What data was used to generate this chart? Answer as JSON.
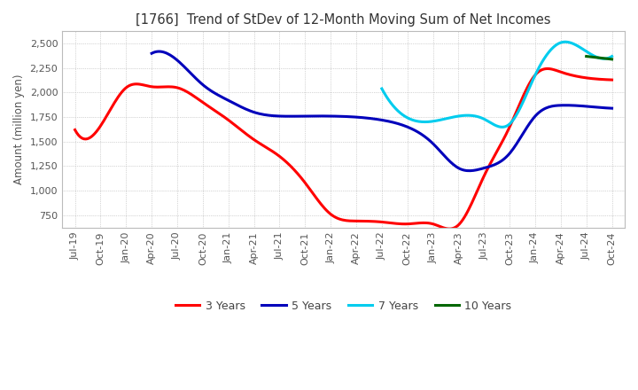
{
  "title": "[1766]  Trend of StDev of 12-Month Moving Sum of Net Incomes",
  "ylabel": "Amount (million yen)",
  "line_colors": {
    "3 Years": "#ff0000",
    "5 Years": "#0000bb",
    "7 Years": "#00ccee",
    "10 Years": "#006600"
  },
  "x_labels": [
    "Jul-19",
    "Oct-19",
    "Jan-20",
    "Apr-20",
    "Jul-20",
    "Oct-20",
    "Jan-21",
    "Apr-21",
    "Jul-21",
    "Oct-21",
    "Jan-22",
    "Apr-22",
    "Jul-22",
    "Oct-22",
    "Jan-23",
    "Apr-23",
    "Jul-23",
    "Oct-23",
    "Jan-24",
    "Apr-24",
    "Jul-24",
    "Oct-24"
  ],
  "ylim": [
    625,
    2625
  ],
  "yticks": [
    750,
    1000,
    1250,
    1500,
    1750,
    2000,
    2250,
    2500
  ],
  "series": {
    "3 Years": [
      1620,
      1660,
      2050,
      2060,
      2050,
      1900,
      1720,
      1520,
      1350,
      1080,
      760,
      690,
      680,
      660,
      660,
      650,
      1150,
      1650,
      2180,
      2210,
      2150,
      2130
    ],
    "5 Years": [
      null,
      null,
      null,
      2400,
      2330,
      2080,
      1920,
      1800,
      1760,
      1760,
      1760,
      1750,
      1720,
      1650,
      1480,
      1230,
      1230,
      1380,
      1760,
      1870,
      1860,
      1840
    ],
    "7 Years": [
      null,
      null,
      null,
      null,
      null,
      null,
      null,
      null,
      null,
      null,
      null,
      null,
      2040,
      null,
      null,
      1760,
      1730,
      1680,
      2180,
      2510,
      2420,
      2370
    ],
    "10 Years": [
      null,
      null,
      null,
      null,
      null,
      null,
      null,
      null,
      null,
      null,
      null,
      null,
      null,
      null,
      null,
      null,
      null,
      null,
      null,
      null,
      2370,
      2340
    ]
  },
  "background_color": "#ffffff",
  "grid_color": "#b0b0b0",
  "linewidth": 2.2,
  "figsize": [
    7.2,
    4.4
  ],
  "dpi": 100
}
